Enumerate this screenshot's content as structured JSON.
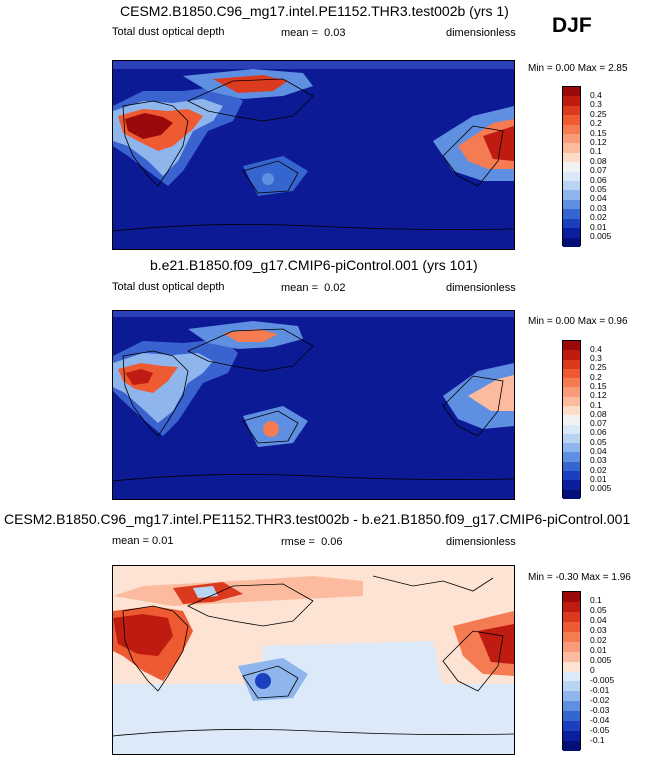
{
  "season": "DJF",
  "panels": [
    {
      "title": "CESM2.B1850.C96_mg17.intel.PE1152.THR3.test002b (yrs 1)",
      "left_label": "Total dust optical depth",
      "stat_label": "mean =",
      "stat_value": "0.03",
      "units": "dimensionless",
      "min_label": "Min =",
      "min_value": "0.00",
      "max_label": "Max =",
      "max_value": "2.85",
      "colorbar": {
        "levels": [
          "0.4",
          "0.3",
          "0.25",
          "0.2",
          "0.15",
          "0.12",
          "0.1",
          "0.08",
          "0.07",
          "0.06",
          "0.05",
          "0.04",
          "0.03",
          "0.02",
          "0.01",
          "0.005"
        ],
        "colors": [
          "#9b0a0a",
          "#c01b10",
          "#dc3a1e",
          "#ee5a32",
          "#f57b52",
          "#f99b78",
          "#fcbb9e",
          "#fddcc8",
          "#f2f2f2",
          "#dbe8f7",
          "#b9d4f2",
          "#8fb6ec",
          "#5f8fe0",
          "#3566d0",
          "#1a3fbf",
          "#0b1f9e",
          "#050f7a"
        ]
      }
    },
    {
      "title": "b.e21.B1850.f09_g17.CMIP6-piControl.001 (yrs 101)",
      "left_label": "Total dust optical depth",
      "stat_label": "mean =",
      "stat_value": "0.02",
      "units": "dimensionless",
      "min_label": "Min =",
      "min_value": "0.00",
      "max_label": "Max =",
      "max_value": "0.96",
      "colorbar": {
        "levels": [
          "0.4",
          "0.3",
          "0.25",
          "0.2",
          "0.15",
          "0.12",
          "0.1",
          "0.08",
          "0.07",
          "0.06",
          "0.05",
          "0.04",
          "0.03",
          "0.02",
          "0.01",
          "0.005"
        ],
        "colors": [
          "#9b0a0a",
          "#c01b10",
          "#dc3a1e",
          "#ee5a32",
          "#f57b52",
          "#f99b78",
          "#fcbb9e",
          "#fddcc8",
          "#f2f2f2",
          "#dbe8f7",
          "#b9d4f2",
          "#8fb6ec",
          "#5f8fe0",
          "#3566d0",
          "#1a3fbf",
          "#0b1f9e",
          "#050f7a"
        ]
      }
    },
    {
      "title": "CESM2.B1850.C96_mg17.intel.PE1152.THR3.test002b - b.e21.B1850.f09_g17.CMIP6-piControl.001",
      "left_label": "mean =  0.01",
      "stat_label": "rmse =",
      "stat_value": "0.06",
      "units": "dimensionless",
      "min_label": "Min =",
      "min_value": "-0.30",
      "max_label": "Max =",
      "max_value": "1.96",
      "colorbar": {
        "levels": [
          "0.1",
          "0.05",
          "0.04",
          "0.03",
          "0.02",
          "0.01",
          "0.005",
          "0",
          "-0.005",
          "-0.01",
          "-0.02",
          "-0.03",
          "-0.04",
          "-0.05",
          "-0.1"
        ],
        "colors": [
          "#9b0a0a",
          "#c01b10",
          "#dc3a1e",
          "#ee5a32",
          "#f57b52",
          "#f99b78",
          "#fcbb9e",
          "#fde3d4",
          "#dce9f8",
          "#b9d4f2",
          "#8fb6ec",
          "#5f8fe0",
          "#3566d0",
          "#1a3fbf",
          "#0b1f9e",
          "#050f7a"
        ]
      }
    }
  ],
  "chart_data": [
    {
      "type": "heatmap",
      "title": "CESM2.B1850.C96_mg17.intel.PE1152.THR3.test002b (yrs 1)",
      "variable": "Total dust optical depth",
      "mean": 0.03,
      "min": 0.0,
      "max": 2.85,
      "units": "dimensionless",
      "contour_levels": [
        0.005,
        0.01,
        0.02,
        0.03,
        0.04,
        0.05,
        0.06,
        0.07,
        0.08,
        0.1,
        0.12,
        0.15,
        0.2,
        0.25,
        0.3,
        0.4
      ]
    },
    {
      "type": "heatmap",
      "title": "b.e21.B1850.f09_g17.CMIP6-piControl.001 (yrs 101)",
      "variable": "Total dust optical depth",
      "mean": 0.02,
      "min": 0.0,
      "max": 0.96,
      "units": "dimensionless",
      "contour_levels": [
        0.005,
        0.01,
        0.02,
        0.03,
        0.04,
        0.05,
        0.06,
        0.07,
        0.08,
        0.1,
        0.12,
        0.15,
        0.2,
        0.25,
        0.3,
        0.4
      ]
    },
    {
      "type": "heatmap",
      "title": "CESM2.B1850.C96_mg17.intel.PE1152.THR3.test002b - b.e21.B1850.f09_g17.CMIP6-piControl.001",
      "mean": 0.01,
      "rmse": 0.06,
      "min": -0.3,
      "max": 1.96,
      "units": "dimensionless",
      "contour_levels": [
        -0.1,
        -0.05,
        -0.04,
        -0.03,
        -0.02,
        -0.01,
        -0.005,
        0,
        0.005,
        0.01,
        0.02,
        0.03,
        0.04,
        0.05,
        0.1
      ]
    }
  ]
}
